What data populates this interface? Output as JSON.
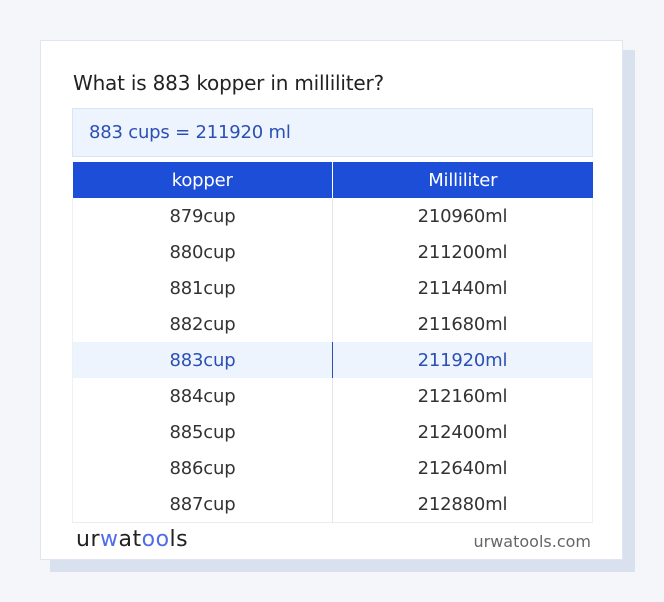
{
  "title": "What is 883 kopper in milliliter?",
  "answer": "883 cups = 211920 ml",
  "table": {
    "headers": [
      "kopper",
      "Milliliter"
    ],
    "highlight_index": 4,
    "rows": [
      [
        "879cup",
        "210960ml"
      ],
      [
        "880cup",
        "211200ml"
      ],
      [
        "881cup",
        "211440ml"
      ],
      [
        "882cup",
        "211680ml"
      ],
      [
        "883cup",
        "211920ml"
      ],
      [
        "884cup",
        "212160ml"
      ],
      [
        "885cup",
        "212400ml"
      ],
      [
        "886cup",
        "212640ml"
      ],
      [
        "887cup",
        "212880ml"
      ]
    ]
  },
  "footer": {
    "logo_parts": {
      "a": "ur",
      "b": "w",
      "c": "at",
      "d": "oo",
      "e": "ls"
    },
    "site": "urwatools.com"
  },
  "colors": {
    "accent": "#1d4ed8",
    "highlight_bg": "#edf4fd",
    "highlight_text": "#2b4fb5"
  }
}
